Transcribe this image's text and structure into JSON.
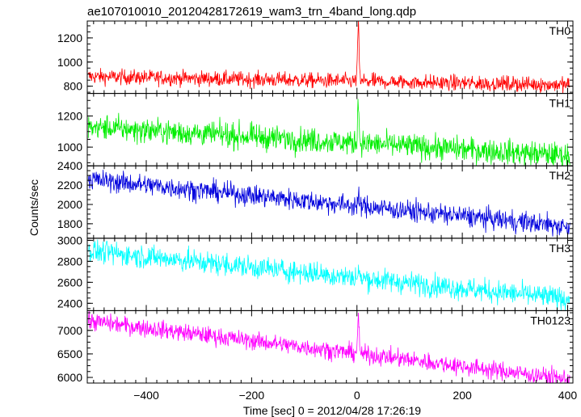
{
  "title": "ae107010010_20120428172619_wam3_trn_4band_long.qdp",
  "ylabel": "Counts/sec",
  "xlabel": "Time [sec] 0 = 2012/04/28 17:26:19",
  "chart_data": {
    "type": "line",
    "title": "ae107010010_20120428172619_wam3_trn_4band_long.qdp",
    "xlabel": "Time [sec] 0 = 2012/04/28 17:26:19",
    "ylabel": "Counts/sec",
    "xlim": [
      -512,
      410
    ],
    "x_ticks": [
      -400,
      -200,
      0,
      200,
      400
    ],
    "grid": false,
    "panels": [
      {
        "name": "TH0",
        "color": "#ff0000",
        "ylim": [
          740,
          1340
        ],
        "y_ticks": [
          800,
          1000,
          1200
        ],
        "trend_start": 880,
        "trend_end": 810,
        "noise": 32,
        "burst_peak": 1340
      },
      {
        "name": "TH1",
        "color": "#00ee00",
        "ylim": [
          880,
          1345
        ],
        "y_ticks": [
          1000,
          1200
        ],
        "trend_start": 1130,
        "trend_end": 945,
        "noise": 40,
        "burst_peak": 1330
      },
      {
        "name": "TH2",
        "color": "#0000dd",
        "ylim": [
          1650,
          2400
        ],
        "y_ticks": [
          1800,
          2000,
          2200,
          2400
        ],
        "trend_start": 2260,
        "trend_end": 1770,
        "noise": 55,
        "burst_peak": 2080
      },
      {
        "name": "TH3",
        "color": "#00ffff",
        "ylim": [
          2330,
          3020
        ],
        "y_ticks": [
          2400,
          2600,
          2800,
          3000
        ],
        "trend_start": 2900,
        "trend_end": 2440,
        "noise": 55,
        "burst_peak": 2700
      },
      {
        "name": "TH0123",
        "color": "#ff00ff",
        "ylim": [
          5880,
          7420
        ],
        "y_ticks": [
          6000,
          6500,
          7000
        ],
        "trend_start": 7200,
        "trend_end": 5960,
        "noise": 95,
        "burst_peak": 7350
      }
    ]
  }
}
